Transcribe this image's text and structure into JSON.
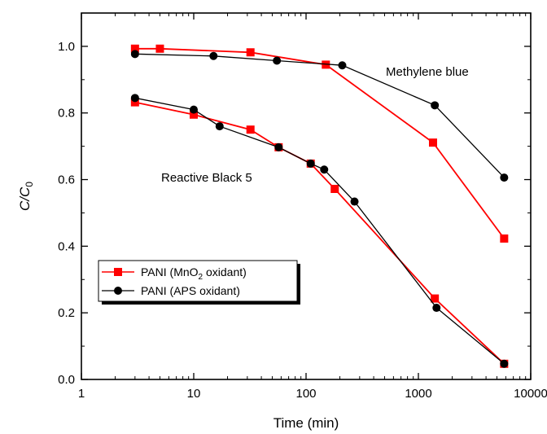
{
  "chart_data": {
    "type": "line",
    "x_scale": "log",
    "xlim": [
      1,
      10000
    ],
    "ylim": [
      0.0,
      1.1
    ],
    "x_ticks": [
      1,
      10,
      100,
      1000,
      10000
    ],
    "x_tick_labels": [
      "1",
      "10",
      "100",
      "1000",
      "10000"
    ],
    "y_ticks": [
      0.0,
      0.2,
      0.4,
      0.6,
      0.8,
      1.0
    ],
    "y_tick_labels": [
      "0.0",
      "0.2",
      "0.4",
      "0.6",
      "0.8",
      "1.0"
    ],
    "xlabel": "Time (min)",
    "ylabel": {
      "main": "C/C",
      "subscript": "0"
    },
    "grid": false,
    "legend_position": "lower-left",
    "legend": [
      {
        "series": "mno2",
        "text_before": "PANI (MnO",
        "subscript": "2",
        "text_after": " oxidant)"
      },
      {
        "series": "aps",
        "text_before": "PANI (APS oxidant)",
        "subscript": "",
        "text_after": ""
      }
    ],
    "annotations": [
      {
        "id": "mb",
        "text": "Methylene blue"
      },
      {
        "id": "rb5",
        "text": "Reactive Black 5"
      }
    ],
    "series": [
      {
        "id": "mno2",
        "group": "Methylene blue",
        "marker": "square",
        "color": "#ff0000",
        "points": [
          [
            3,
            0.993
          ],
          [
            5,
            0.993
          ],
          [
            32,
            0.982
          ],
          [
            150,
            0.945
          ],
          [
            1350,
            0.711
          ],
          [
            5800,
            0.423
          ]
        ]
      },
      {
        "id": "aps",
        "group": "Methylene blue",
        "marker": "circle",
        "color": "#000000",
        "points": [
          [
            3,
            0.977
          ],
          [
            15,
            0.971
          ],
          [
            55,
            0.957
          ],
          [
            210,
            0.943
          ],
          [
            1400,
            0.823
          ],
          [
            5800,
            0.606
          ]
        ]
      },
      {
        "id": "mno2",
        "group": "Reactive Black 5",
        "marker": "square",
        "color": "#ff0000",
        "points": [
          [
            3,
            0.832
          ],
          [
            10,
            0.795
          ],
          [
            32,
            0.75
          ],
          [
            57,
            0.697
          ],
          [
            110,
            0.648
          ],
          [
            180,
            0.572
          ],
          [
            1400,
            0.243
          ],
          [
            5800,
            0.047
          ]
        ]
      },
      {
        "id": "aps",
        "group": "Reactive Black 5",
        "marker": "circle",
        "color": "#000000",
        "points": [
          [
            3,
            0.845
          ],
          [
            10,
            0.81
          ],
          [
            17,
            0.76
          ],
          [
            57,
            0.697
          ],
          [
            110,
            0.648
          ],
          [
            145,
            0.63
          ],
          [
            270,
            0.534
          ],
          [
            1450,
            0.215
          ],
          [
            5800,
            0.047
          ]
        ]
      }
    ]
  }
}
